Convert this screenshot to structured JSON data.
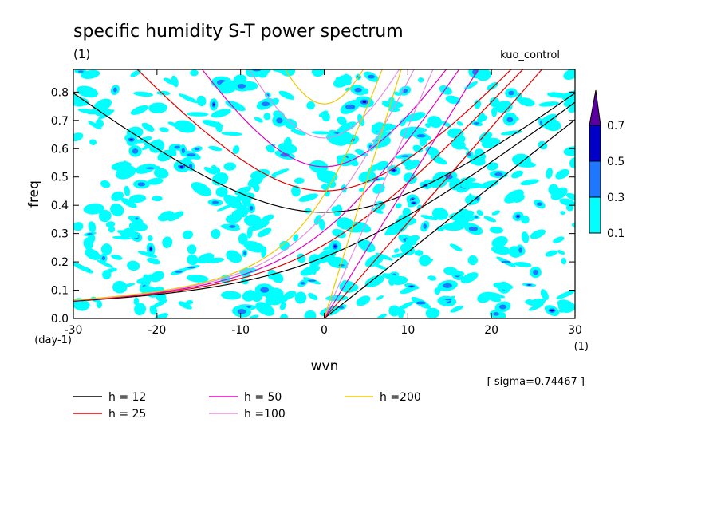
{
  "chart_data": {
    "type": "heatmap",
    "title": "specific humidity S-T power spectrum",
    "subtitle_left": "(1)",
    "subtitle_right": "kuo_control",
    "xlabel": "wvn",
    "ylabel": "freq",
    "x_unit": "(1)",
    "y_unit": "(day-1)",
    "xlim": [
      -30,
      30
    ],
    "ylim": [
      0,
      0.88
    ],
    "x_ticks": [
      -30,
      -20,
      -10,
      0,
      10,
      20,
      30
    ],
    "x_tick_labels": [
      "-30",
      "-20",
      "-10",
      "0",
      "10",
      "20",
      "30"
    ],
    "y_ticks": [
      0,
      0.1,
      0.2,
      0.3,
      0.4,
      0.5,
      0.6,
      0.7,
      0.8
    ],
    "y_tick_labels": [
      "0.0",
      "0.1",
      "0.2",
      "0.3",
      "0.4",
      "0.5",
      "0.6",
      "0.7",
      "0.8"
    ],
    "colorbar": {
      "levels": [
        0.1,
        0.3,
        0.5,
        0.7
      ],
      "labels": [
        "0.1",
        "0.3",
        "0.5",
        "0.7"
      ],
      "colors": [
        "#00ffff",
        "#1e78ff",
        "#0000c8",
        "#5a00a0"
      ]
    },
    "annotation": "[ sigma=0.74467 ]",
    "dispersion_curves": [
      {
        "label": "h = 12",
        "h": 12,
        "color": "#000000"
      },
      {
        "label": "h = 25",
        "h": 25,
        "color": "#e00000"
      },
      {
        "label": "h = 50",
        "h": 50,
        "color": "#e000c0"
      },
      {
        "label": "h =100",
        "h": 100,
        "color": "#e090e0"
      },
      {
        "label": "h =200",
        "h": 200,
        "color": "#f0c800"
      }
    ],
    "grid": false,
    "legend_position": "bottom-left"
  }
}
